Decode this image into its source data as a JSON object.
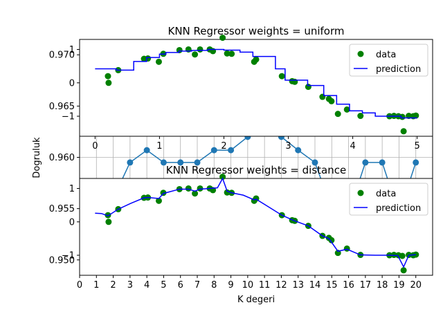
{
  "chart_data": [
    {
      "type": "line",
      "title": "",
      "xlabel": "K degeri",
      "ylabel": "Dogruluk",
      "x": [
        1,
        2,
        3,
        4,
        5,
        6,
        7,
        8,
        9,
        10,
        11,
        12,
        13,
        14,
        15,
        16,
        17,
        18,
        19,
        20
      ],
      "y": [
        0.955,
        0.956,
        0.9595,
        0.9607,
        0.9595,
        0.9595,
        0.9595,
        0.9607,
        0.9607,
        0.962,
        0.9657,
        0.962,
        0.9607,
        0.9595,
        0.955,
        0.9545,
        0.9595,
        0.9595,
        0.9545,
        0.9595
      ],
      "xticks": [
        "0",
        "2",
        "4",
        "6",
        "8",
        "10",
        "12",
        "14",
        "16",
        "18",
        "20"
      ],
      "yticks": [
        "0.950",
        "0.955",
        "0.960",
        "0.965",
        "0.970"
      ],
      "xlim": [
        0,
        21
      ],
      "ylim": [
        0.9485,
        0.9715
      ],
      "grid": true,
      "color": "#1f77b4"
    },
    {
      "type": "scatter",
      "title": "KNN Regressor weights = uniform",
      "legend": [
        "data",
        "prediction"
      ],
      "legend_position": "top-right",
      "yticks": [
        "−1",
        "0",
        "1"
      ],
      "xticks": [
        "0",
        "1",
        "2",
        "3",
        "4",
        "5"
      ],
      "xlim": [
        -0.24,
        5.24
      ],
      "ylim": [
        -1.6,
        1.3
      ],
      "data_x": [
        0.2,
        0.21,
        0.36,
        0.76,
        0.82,
        0.99,
        1.06,
        1.31,
        1.45,
        1.55,
        1.63,
        1.78,
        1.83,
        1.98,
        2.05,
        2.12,
        2.47,
        2.5,
        2.9,
        3.06,
        3.1,
        3.31,
        3.53,
        3.63,
        3.67,
        3.77,
        3.91,
        4.12,
        4.57,
        4.64,
        4.71,
        4.77,
        4.79,
        4.87,
        4.94,
        4.98
      ],
      "data_y": [
        0.2,
        0,
        0.38,
        0.72,
        0.73,
        0.63,
        0.87,
        0.98,
        1.0,
        0.85,
        1.0,
        1.0,
        0.95,
        1.35,
        0.88,
        0.87,
        0.63,
        0.7,
        0.2,
        0.05,
        0.03,
        -0.12,
        -0.42,
        -0.48,
        -0.55,
        -0.93,
        -0.8,
        -0.99,
        -1.0,
        -0.99,
        -1.0,
        -1.02,
        -1.45,
        -0.99,
        -1.0,
        -0.98
      ],
      "pred_x": [
        0,
        0.2,
        0.33,
        0.6,
        0.8,
        1.0,
        1.1,
        1.3,
        1.5,
        1.75,
        2.0,
        2.25,
        2.45,
        2.8,
        2.95,
        3.3,
        3.55,
        3.75,
        3.95,
        4.15,
        4.35,
        4.55,
        4.75,
        5.0
      ],
      "pred_y": [
        0.42,
        0.42,
        0.38,
        0.64,
        0.76,
        0.86,
        0.91,
        0.95,
        0.97,
        1.0,
        0.98,
        0.92,
        0.79,
        0.42,
        0.08,
        -0.08,
        -0.38,
        -0.64,
        -0.84,
        -0.9,
        -1.0,
        -1.0,
        -1.05,
        -1.05
      ],
      "data_color": "#008000",
      "pred_color": "#0000ff"
    },
    {
      "type": "scatter",
      "title": "KNN Regressor weights = distance",
      "legend": [
        "data",
        "prediction"
      ],
      "legend_position": "top-right",
      "yticks": [
        "−1",
        "0",
        "1"
      ],
      "xlim": [
        -0.24,
        5.24
      ],
      "ylim": [
        -1.6,
        1.3
      ],
      "data_x": [
        0.2,
        0.21,
        0.36,
        0.76,
        0.82,
        0.99,
        1.06,
        1.31,
        1.45,
        1.55,
        1.63,
        1.78,
        1.83,
        1.98,
        2.05,
        2.12,
        2.47,
        2.5,
        2.9,
        3.06,
        3.1,
        3.31,
        3.53,
        3.63,
        3.67,
        3.77,
        3.91,
        4.12,
        4.57,
        4.64,
        4.71,
        4.77,
        4.79,
        4.87,
        4.94,
        4.98
      ],
      "data_y": [
        0.2,
        0,
        0.38,
        0.72,
        0.73,
        0.63,
        0.87,
        0.98,
        1.0,
        0.85,
        1.0,
        1.0,
        0.95,
        1.35,
        0.88,
        0.87,
        0.63,
        0.7,
        0.2,
        0.05,
        0.03,
        -0.12,
        -0.42,
        -0.48,
        -0.55,
        -0.93,
        -0.8,
        -0.99,
        -1.0,
        -0.99,
        -1.0,
        -1.02,
        -1.45,
        -0.99,
        -1.0,
        -0.98
      ],
      "pred_x": [
        0,
        0.1,
        0.2,
        0.36,
        0.55,
        0.76,
        0.82,
        0.99,
        1.06,
        1.31,
        1.45,
        1.55,
        1.63,
        1.78,
        1.9,
        1.98,
        2.05,
        2.12,
        2.3,
        2.47,
        2.5,
        2.9,
        3.06,
        3.1,
        3.31,
        3.53,
        3.63,
        3.77,
        3.91,
        4.12,
        4.35,
        4.57,
        4.7,
        4.79,
        4.87,
        4.98
      ],
      "pred_y": [
        0.26,
        0.25,
        0.18,
        0.38,
        0.55,
        0.72,
        0.73,
        0.7,
        0.85,
        0.98,
        0.98,
        0.92,
        0.98,
        1.0,
        1.02,
        1.3,
        0.92,
        0.87,
        0.8,
        0.66,
        0.68,
        0.2,
        0.06,
        0.03,
        -0.12,
        -0.42,
        -0.5,
        -0.88,
        -0.82,
        -0.99,
        -1.0,
        -1.0,
        -1.01,
        -1.35,
        -1.0,
        -0.98
      ],
      "data_color": "#008000",
      "pred_color": "#0000ff"
    }
  ]
}
